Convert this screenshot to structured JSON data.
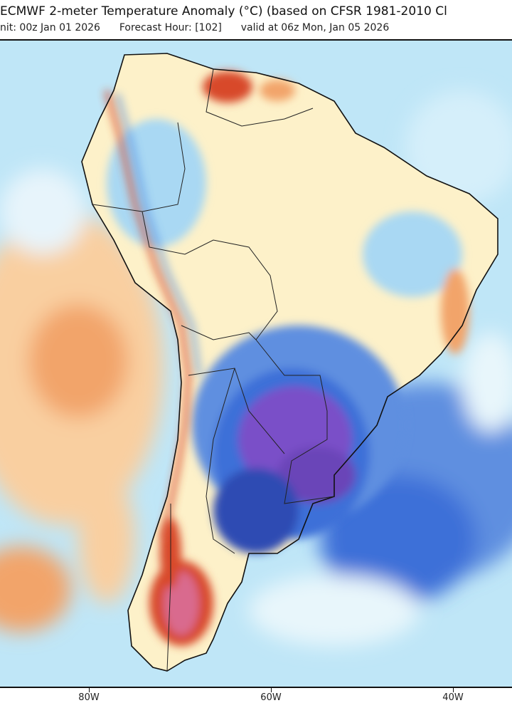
{
  "header": {
    "title": "ECMWF 2-meter Temperature Anomaly (°C) (based on CFSR 1981-2010 Cl",
    "init": "nit: 00z Jan 01 2026",
    "forecast_hour": "Forecast Hour: [102]",
    "valid": "valid at 06z Mon, Jan 05 2026"
  },
  "map": {
    "region": "South America",
    "variable": "2-meter temperature anomaly",
    "colors": {
      "ocean_base": "#bfe6f7",
      "land_base": "#fdf1c9",
      "warm_light": "#f9cfa0",
      "warm": "#f2a46a",
      "hot": "#d84a2a",
      "very_hot": "#d96a8e",
      "cool": "#8cc8ee",
      "cold": "#3c6fd8",
      "very_cold": "#2d4bb3",
      "extreme_cold": "#7a4fc8"
    }
  },
  "axis": {
    "ticks": [
      "80W",
      "60W",
      "40W"
    ]
  }
}
